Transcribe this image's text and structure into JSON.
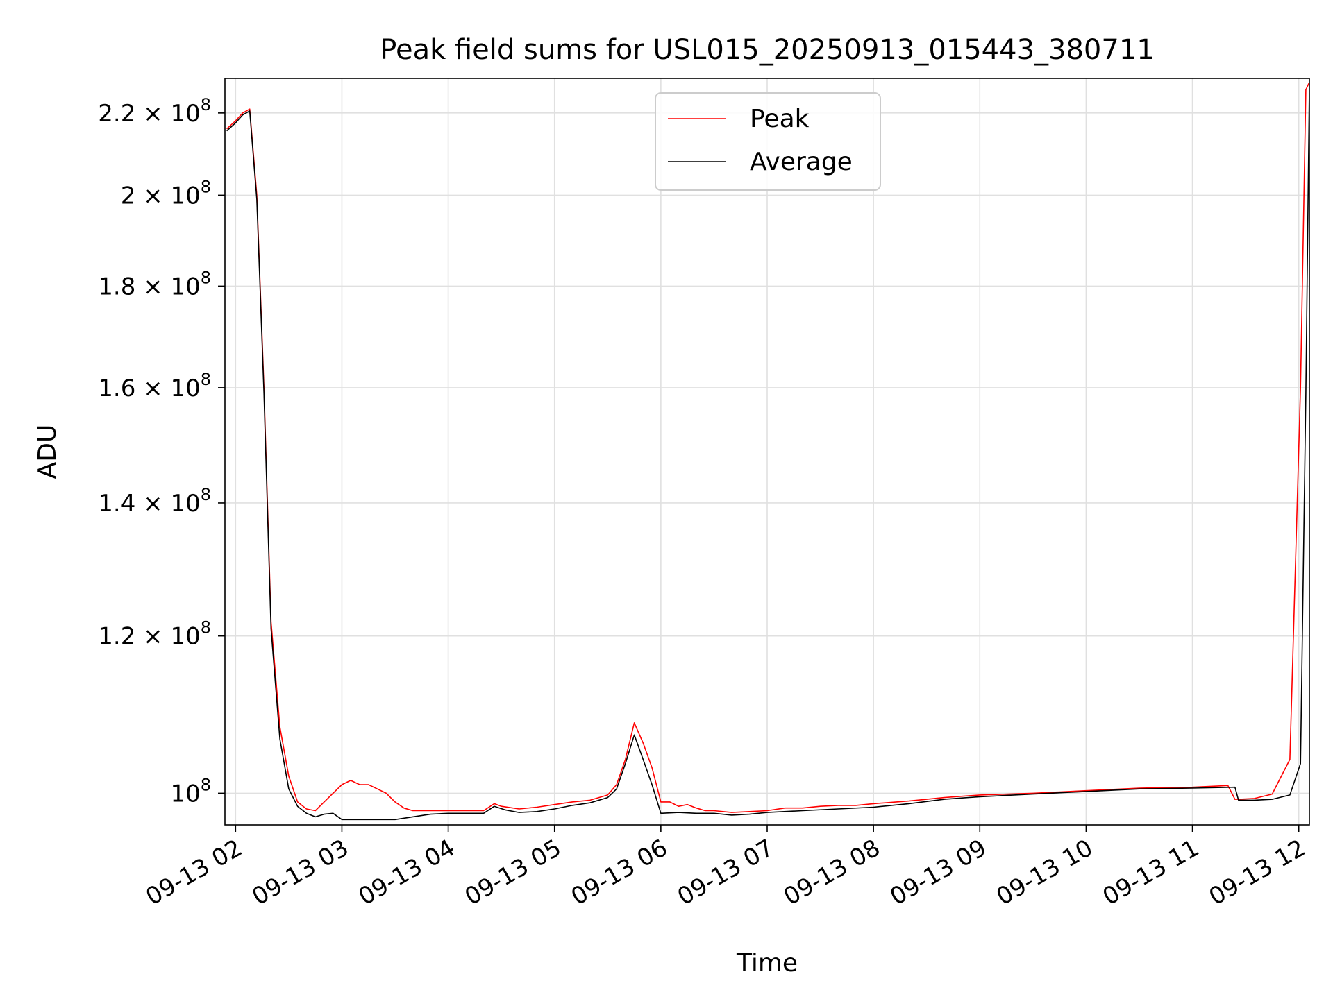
{
  "chart_data": {
    "type": "line",
    "title": "Peak field sums for USL015_20250913_015443_380711",
    "xlabel": "Time",
    "ylabel": "ADU",
    "x_scale": "time",
    "y_scale": "log",
    "xlim": [
      "2025-09-13 01:54",
      "2025-09-13 12:06"
    ],
    "ylim": [
      96400000,
      229000000
    ],
    "x_ticks": [
      "09-13 02",
      "09-13 03",
      "09-13 04",
      "09-13 05",
      "09-13 06",
      "09-13 07",
      "09-13 08",
      "09-13 09",
      "09-13 10",
      "09-13 11",
      "09-13 12"
    ],
    "y_ticks": [
      {
        "value": 100000000,
        "mantissa": "",
        "exponent": "8",
        "base": "10"
      },
      {
        "value": 120000000,
        "mantissa": "1.2",
        "exponent": "8",
        "base": "10"
      },
      {
        "value": 140000000,
        "mantissa": "1.4",
        "exponent": "8",
        "base": "10"
      },
      {
        "value": 160000000,
        "mantissa": "1.6",
        "exponent": "8",
        "base": "10"
      },
      {
        "value": 180000000,
        "mantissa": "1.8",
        "exponent": "8",
        "base": "10"
      },
      {
        "value": 200000000,
        "mantissa": "2",
        "exponent": "8",
        "base": "10"
      },
      {
        "value": 220000000,
        "mantissa": "2.2",
        "exponent": "8",
        "base": "10"
      }
    ],
    "grid": true,
    "legend_position": "top-center",
    "series": [
      {
        "name": "Peak",
        "color": "#ff0000",
        "x": [
          "2025-09-13 01:55",
          "2025-09-13 02:00",
          "2025-09-13 02:04",
          "2025-09-13 02:08",
          "2025-09-13 02:12",
          "2025-09-13 02:16",
          "2025-09-13 02:20",
          "2025-09-13 02:25",
          "2025-09-13 02:30",
          "2025-09-13 02:35",
          "2025-09-13 02:40",
          "2025-09-13 02:45",
          "2025-09-13 02:50",
          "2025-09-13 02:55",
          "2025-09-13 03:00",
          "2025-09-13 03:05",
          "2025-09-13 03:10",
          "2025-09-13 03:15",
          "2025-09-13 03:20",
          "2025-09-13 03:25",
          "2025-09-13 03:30",
          "2025-09-13 03:35",
          "2025-09-13 03:40",
          "2025-09-13 03:45",
          "2025-09-13 03:50",
          "2025-09-13 04:00",
          "2025-09-13 04:10",
          "2025-09-13 04:20",
          "2025-09-13 04:26",
          "2025-09-13 04:30",
          "2025-09-13 04:40",
          "2025-09-13 04:50",
          "2025-09-13 05:00",
          "2025-09-13 05:10",
          "2025-09-13 05:20",
          "2025-09-13 05:30",
          "2025-09-13 05:35",
          "2025-09-13 05:40",
          "2025-09-13 05:45",
          "2025-09-13 05:50",
          "2025-09-13 05:55",
          "2025-09-13 06:00",
          "2025-09-13 06:05",
          "2025-09-13 06:10",
          "2025-09-13 06:15",
          "2025-09-13 06:20",
          "2025-09-13 06:25",
          "2025-09-13 06:30",
          "2025-09-13 06:40",
          "2025-09-13 06:50",
          "2025-09-13 07:00",
          "2025-09-13 07:10",
          "2025-09-13 07:20",
          "2025-09-13 07:30",
          "2025-09-13 07:40",
          "2025-09-13 07:50",
          "2025-09-13 08:00",
          "2025-09-13 08:20",
          "2025-09-13 08:40",
          "2025-09-13 09:00",
          "2025-09-13 09:30",
          "2025-09-13 10:00",
          "2025-09-13 10:30",
          "2025-09-13 11:00",
          "2025-09-13 11:20",
          "2025-09-13 11:24",
          "2025-09-13 11:26",
          "2025-09-13 11:35",
          "2025-09-13 11:45",
          "2025-09-13 11:55",
          "2025-09-13 12:01",
          "2025-09-13 12:04",
          "2025-09-13 12:06"
        ],
        "y": [
          216000000,
          218000000,
          220000000,
          221000000,
          200000000,
          160000000,
          122000000,
          108000000,
          102000000,
          99000000,
          98200000,
          98000000,
          99000000,
          100000000,
          101000000,
          101500000,
          101000000,
          101000000,
          100500000,
          100000000,
          99000000,
          98300000,
          98000000,
          98000000,
          98000000,
          98000000,
          98000000,
          98000000,
          98800000,
          98500000,
          98200000,
          98400000,
          98700000,
          99000000,
          99200000,
          99800000,
          101000000,
          104000000,
          108500000,
          106000000,
          103000000,
          99000000,
          99000000,
          98500000,
          98700000,
          98300000,
          98000000,
          98000000,
          97800000,
          97900000,
          98000000,
          98300000,
          98300000,
          98500000,
          98600000,
          98600000,
          98800000,
          99100000,
          99500000,
          99800000,
          100000000,
          100300000,
          100600000,
          100700000,
          100900000,
          99300000,
          99300000,
          99400000,
          99900000,
          104000000,
          160000000,
          226000000,
          228000000
        ]
      },
      {
        "name": "Average",
        "color": "#000000",
        "x": [
          "2025-09-13 01:55",
          "2025-09-13 02:00",
          "2025-09-13 02:04",
          "2025-09-13 02:08",
          "2025-09-13 02:12",
          "2025-09-13 02:16",
          "2025-09-13 02:20",
          "2025-09-13 02:25",
          "2025-09-13 02:30",
          "2025-09-13 02:35",
          "2025-09-13 02:40",
          "2025-09-13 02:45",
          "2025-09-13 02:50",
          "2025-09-13 02:55",
          "2025-09-13 03:00",
          "2025-09-13 03:10",
          "2025-09-13 03:20",
          "2025-09-13 03:30",
          "2025-09-13 03:40",
          "2025-09-13 03:50",
          "2025-09-13 04:00",
          "2025-09-13 04:10",
          "2025-09-13 04:20",
          "2025-09-13 04:26",
          "2025-09-13 04:32",
          "2025-09-13 04:40",
          "2025-09-13 04:50",
          "2025-09-13 05:00",
          "2025-09-13 05:10",
          "2025-09-13 05:20",
          "2025-09-13 05:30",
          "2025-09-13 05:35",
          "2025-09-13 05:40",
          "2025-09-13 05:45",
          "2025-09-13 05:50",
          "2025-09-13 05:55",
          "2025-09-13 06:00",
          "2025-09-13 06:10",
          "2025-09-13 06:20",
          "2025-09-13 06:30",
          "2025-09-13 06:40",
          "2025-09-13 06:50",
          "2025-09-13 07:00",
          "2025-09-13 07:20",
          "2025-09-13 07:40",
          "2025-09-13 08:00",
          "2025-09-13 08:20",
          "2025-09-13 08:40",
          "2025-09-13 09:00",
          "2025-09-13 09:30",
          "2025-09-13 10:00",
          "2025-09-13 10:30",
          "2025-09-13 11:00",
          "2025-09-13 11:24",
          "2025-09-13 11:26",
          "2025-09-13 11:35",
          "2025-09-13 11:45",
          "2025-09-13 11:55",
          "2025-09-13 12:01",
          "2025-09-13 12:04",
          "2025-09-13 12:06"
        ],
        "y": [
          215500000,
          217500000,
          219500000,
          220500000,
          199000000,
          159000000,
          121000000,
          106500000,
          100500000,
          98500000,
          97700000,
          97300000,
          97600000,
          97700000,
          97000000,
          97000000,
          97000000,
          97000000,
          97300000,
          97600000,
          97700000,
          97700000,
          97700000,
          98500000,
          98100000,
          97800000,
          97900000,
          98200000,
          98600000,
          98900000,
          99500000,
          100500000,
          103500000,
          107000000,
          104000000,
          101000000,
          97700000,
          97800000,
          97700000,
          97700000,
          97500000,
          97600000,
          97800000,
          98000000,
          98200000,
          98400000,
          98800000,
          99300000,
          99600000,
          99900000,
          100200000,
          100500000,
          100600000,
          100700000,
          99200000,
          99200000,
          99300000,
          99800000,
          103500000,
          159000000,
          227000000
        ]
      }
    ]
  }
}
